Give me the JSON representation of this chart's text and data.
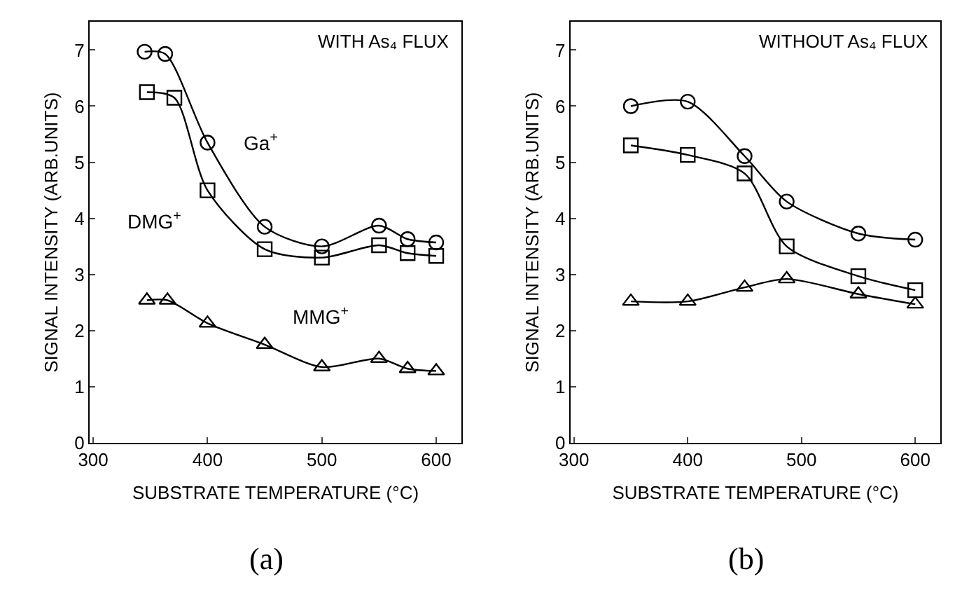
{
  "chart_data": [
    {
      "type": "line",
      "title": "(a)",
      "xlabel": "SUBSTRATE TEMPERATURE (°C)",
      "ylabel": "SIGNAL INTENSITY (ARB.UNITS)",
      "annotations": [
        "WITH As₄ FLUX"
      ],
      "xlim": [
        297,
        622
      ],
      "ylim": [
        0,
        7.5
      ],
      "xticks": [
        300,
        400,
        500,
        600
      ],
      "yticks": [
        0,
        1,
        2,
        3,
        4,
        5,
        6,
        7
      ],
      "legend": false,
      "line_style": "solid",
      "series": [
        {
          "name": "Ga$^{+}$",
          "color": "#000000",
          "marker": "circle",
          "x": [
            345,
            363,
            400,
            450,
            500,
            550,
            575,
            600
          ],
          "values": [
            6.97,
            6.93,
            5.35,
            3.85,
            3.5,
            3.87,
            3.63,
            3.57
          ]
        },
        {
          "name": "DMG$^{+}$",
          "color": "#000000",
          "marker": "square",
          "x": [
            347,
            371,
            400,
            450,
            500,
            550,
            575,
            600
          ],
          "values": [
            6.25,
            6.15,
            4.5,
            3.45,
            3.3,
            3.52,
            3.38,
            3.33
          ]
        },
        {
          "name": "MMG$^{+}$",
          "color": "#000000",
          "marker": "triangle",
          "x": [
            347,
            365,
            400,
            450,
            500,
            550,
            575,
            600
          ],
          "values": [
            2.54,
            2.54,
            2.13,
            1.75,
            1.35,
            1.5,
            1.32,
            1.28
          ]
        }
      ]
    },
    {
      "type": "line",
      "title": "(b)",
      "xlabel": "SUBSTRATE TEMPERATURE (°C)",
      "ylabel": "SIGNAL INTENSITY (ARB.UNITS)",
      "annotations": [
        "WITHOUT As₄ FLUX"
      ],
      "xlim": [
        297,
        622
      ],
      "ylim": [
        0,
        7.5
      ],
      "xticks": [
        300,
        400,
        500,
        600
      ],
      "yticks": [
        0,
        1,
        2,
        3,
        4,
        5,
        6,
        7
      ],
      "legend": false,
      "line_style": "solid",
      "series": [
        {
          "color": "#000000",
          "marker": "circle",
          "x": [
            350,
            400,
            450,
            487,
            550,
            600
          ],
          "values": [
            6.0,
            6.08,
            5.11,
            4.3,
            3.73,
            3.62
          ]
        },
        {
          "color": "#000000",
          "marker": "square",
          "x": [
            350,
            400,
            450,
            487,
            550,
            600
          ],
          "values": [
            5.3,
            5.13,
            4.8,
            3.5,
            2.97,
            2.72
          ]
        },
        {
          "color": "#000000",
          "marker": "triangle",
          "x": [
            350,
            400,
            450,
            487,
            550,
            600
          ],
          "values": [
            2.52,
            2.52,
            2.77,
            2.92,
            2.65,
            2.47
          ]
        }
      ]
    }
  ]
}
